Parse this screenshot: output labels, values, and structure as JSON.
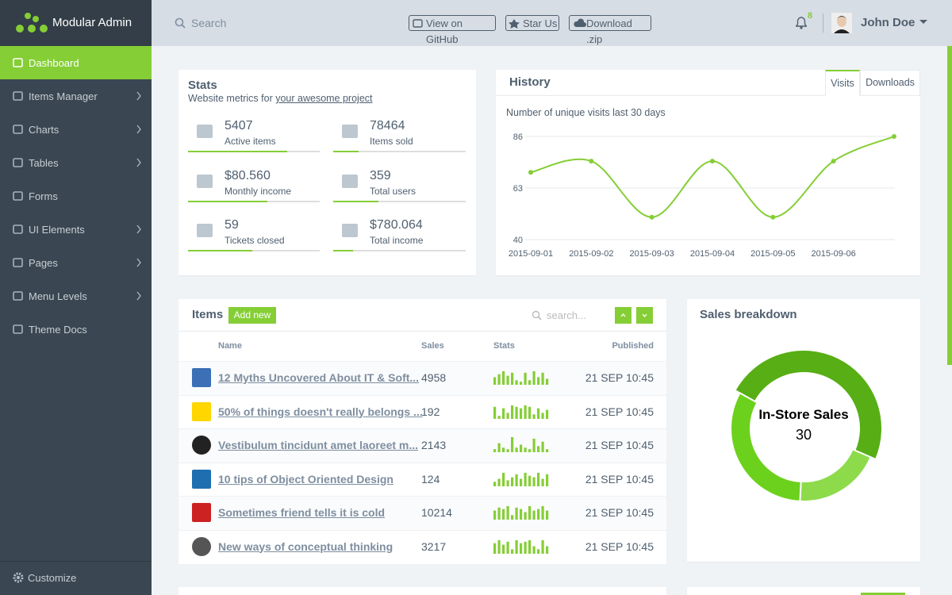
{
  "brand": "Modular Admin",
  "sidebar": {
    "active": 0,
    "items": [
      {
        "label": "Dashboard",
        "submenu": false
      },
      {
        "label": "Items Manager",
        "submenu": true
      },
      {
        "label": "Charts",
        "submenu": true
      },
      {
        "label": "Tables",
        "submenu": true
      },
      {
        "label": "Forms",
        "submenu": false
      },
      {
        "label": "UI Elements",
        "submenu": true
      },
      {
        "label": "Pages",
        "submenu": true
      },
      {
        "label": "Menu Levels",
        "submenu": true
      },
      {
        "label": "Theme Docs",
        "submenu": false
      }
    ],
    "footer": "Customize"
  },
  "topbar": {
    "search": "Search",
    "buttons": [
      "View on GitHub",
      "Star Us",
      "Download .zip"
    ],
    "notifications": "8",
    "user": "John Doe"
  },
  "stats": {
    "title": "Stats",
    "subtitle": "Website metrics for ",
    "subtitle_link": "your awesome project",
    "items": [
      {
        "value": "5407",
        "label": "Active items",
        "progress": 0.75
      },
      {
        "value": "78464",
        "label": "Items sold",
        "progress": 0.19
      },
      {
        "value": "$80.560",
        "label": "Monthly income",
        "progress": 0.6
      },
      {
        "value": "359",
        "label": "Total users",
        "progress": 0.34
      },
      {
        "value": "59",
        "label": "Tickets closed",
        "progress": 0.49
      },
      {
        "value": "$780.064",
        "label": "Total income",
        "progress": 0.15
      }
    ]
  },
  "history": {
    "title": "History",
    "tabs": [
      "Visits",
      "Downloads"
    ],
    "active_tab": 0,
    "chart_data": {
      "type": "line",
      "subtitle": "Number of unique visits last 30 days",
      "categories": [
        "2015-09-01",
        "2015-09-02",
        "2015-09-03",
        "2015-09-04",
        "2015-09-05",
        "2015-09-06",
        null
      ],
      "values": [
        70,
        75,
        50,
        75,
        50,
        75,
        86
      ],
      "color": "#85ce36",
      "ylim": [
        40,
        86
      ],
      "yticks": [
        40,
        63,
        86
      ],
      "grid": true
    }
  },
  "items": {
    "title": "Items",
    "add_button": "Add new",
    "search": "search...",
    "columns": [
      "Name",
      "Sales",
      "Stats",
      "Published"
    ],
    "rows": [
      {
        "name": "12 Myths Uncovered About IT & Soft...",
        "sales": "4958",
        "stats": [
          5,
          7,
          9,
          6,
          8,
          3,
          2,
          8,
          3,
          9,
          5,
          8,
          4
        ],
        "published": "21 SEP 10:45"
      },
      {
        "name": "50% of things doesn't really belongs ...",
        "sales": "192",
        "stats": [
          8,
          2,
          7,
          4,
          9,
          8,
          7,
          9,
          8,
          3,
          7,
          4,
          6
        ],
        "published": "21 SEP 10:45"
      },
      {
        "name": "Vestibulum tincidunt amet laoreet m...",
        "sales": "2143",
        "stats": [
          2,
          6,
          3,
          2,
          10,
          3,
          5,
          3,
          2,
          9,
          4,
          7,
          2
        ],
        "published": "21 SEP 10:45"
      },
      {
        "name": "10 tips of Object Oriented Design",
        "sales": "124",
        "stats": [
          3,
          5,
          9,
          4,
          6,
          8,
          5,
          9,
          7,
          6,
          9,
          5,
          8
        ],
        "published": "21 SEP 10:45"
      },
      {
        "name": "Sometimes friend tells it is cold",
        "sales": "10214",
        "stats": [
          6,
          8,
          7,
          9,
          3,
          8,
          7,
          5,
          9,
          6,
          7,
          9,
          6
        ],
        "published": "21 SEP 10:45"
      },
      {
        "name": "New ways of conceptual thinking",
        "sales": "3217",
        "stats": [
          7,
          9,
          6,
          8,
          3,
          9,
          7,
          8,
          9,
          5,
          3,
          9,
          5
        ],
        "published": "21 SEP 10:45"
      }
    ]
  },
  "sales": {
    "title": "Sales breakdown",
    "chart_data": {
      "type": "donut",
      "values": [
        30,
        12,
        20
      ],
      "colors": [
        "#58ae15",
        "#8ddb4b",
        "#6cd11c"
      ],
      "highlight": 0,
      "label": "In-Store Sales"
    }
  }
}
